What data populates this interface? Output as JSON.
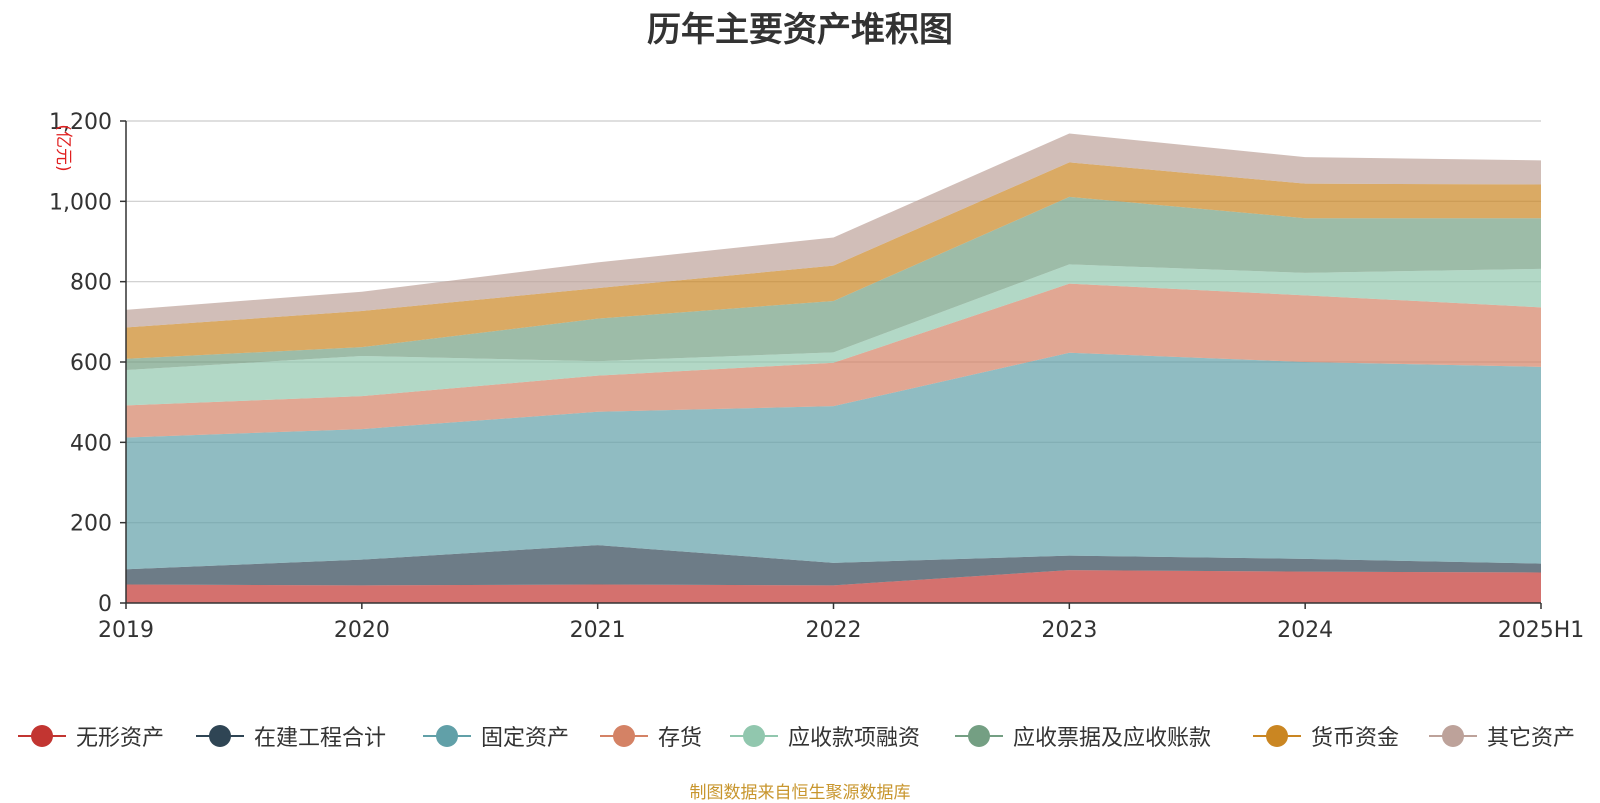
{
  "chart_data": {
    "type": "area",
    "stacked": true,
    "title": "历年主要资产堆积图",
    "unit_label": "(亿元)",
    "categories": [
      "2019",
      "2020",
      "2021",
      "2022",
      "2023",
      "2024",
      "2025H1"
    ],
    "ylim": [
      0,
      1200
    ],
    "yticks": [
      0,
      200,
      400,
      600,
      800,
      1000,
      1200
    ],
    "ytick_labels": [
      "0",
      "200",
      "400",
      "600",
      "800",
      "1,000",
      "1,200"
    ],
    "grid": true,
    "legend_position": "bottom",
    "series": [
      {
        "name": "无形资产",
        "color": "#c23531",
        "values": [
          46,
          44,
          46,
          44,
          82,
          78,
          76
        ]
      },
      {
        "name": "在建工程合计",
        "color": "#2f4554",
        "values": [
          38,
          64,
          98,
          56,
          36,
          32,
          22
        ]
      },
      {
        "name": "固定资产",
        "color": "#61a0a8",
        "values": [
          328,
          325,
          332,
          390,
          505,
          490,
          490
        ]
      },
      {
        "name": "存货",
        "color": "#d48265",
        "values": [
          80,
          82,
          90,
          108,
          172,
          166,
          148
        ]
      },
      {
        "name": "应收款项融资",
        "color": "#91c7ae",
        "values": [
          88,
          100,
          36,
          26,
          48,
          56,
          96
        ]
      },
      {
        "name": "应收票据及应收账款",
        "color": "#749f83",
        "values": [
          28,
          22,
          106,
          128,
          168,
          136,
          126
        ]
      },
      {
        "name": "货币资金",
        "color": "#ca8622",
        "values": [
          78,
          90,
          76,
          88,
          86,
          86,
          84
        ]
      },
      {
        "name": "其它资产",
        "color": "#bda29a",
        "values": [
          44,
          48,
          64,
          70,
          72,
          66,
          60
        ]
      }
    ]
  },
  "source_note": "制图数据来自恒生聚源数据库"
}
